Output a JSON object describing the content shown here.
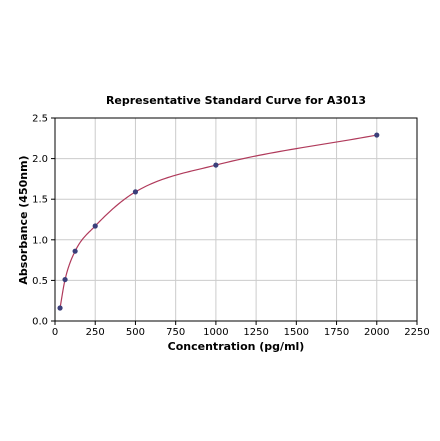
{
  "chart_data": {
    "type": "scatter",
    "title": "Representative Standard Curve for A3013",
    "xlabel": "Concentration (pg/ml)",
    "ylabel": "Absorbance (450nm)",
    "xlim": [
      0,
      2250
    ],
    "ylim": [
      0,
      2.5
    ],
    "x_ticks": [
      "0",
      "250",
      "500",
      "750",
      "1000",
      "1250",
      "1500",
      "1750",
      "2000",
      "2250"
    ],
    "y_ticks": [
      "0.0",
      "0.5",
      "1.0",
      "1.5",
      "2.0",
      "2.5"
    ],
    "grid": true,
    "series": [
      {
        "x": [
          31.25,
          62.5,
          125,
          250,
          500,
          1000,
          2000
        ],
        "y": [
          0.16,
          0.51,
          0.86,
          1.17,
          1.59,
          1.92,
          2.29
        ]
      }
    ],
    "fit_curve": true,
    "colors": {
      "points": "#3b3f7a",
      "curve": "#b03a5b",
      "grid": "#cccccc",
      "axis": "#000000"
    }
  }
}
